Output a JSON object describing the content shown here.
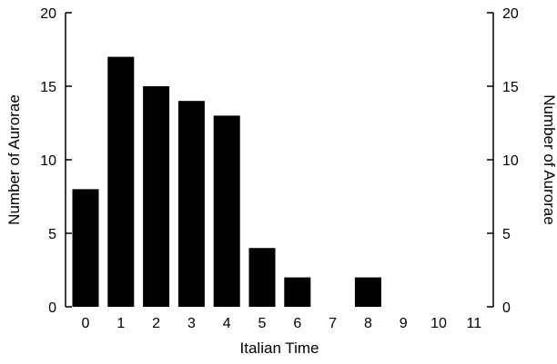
{
  "chart_data": {
    "type": "bar",
    "categories": [
      "0",
      "1",
      "2",
      "3",
      "4",
      "5",
      "6",
      "7",
      "8",
      "9",
      "10",
      "11"
    ],
    "values": [
      8,
      17,
      15,
      14,
      13,
      4,
      2,
      0,
      2,
      0,
      0,
      0
    ],
    "title": "",
    "xlabel": "Italian Time",
    "ylabel": "Number of Aurorae",
    "ylabel_right": "Number of Aurorae",
    "ylim": [
      0,
      20
    ],
    "yticks": [
      0,
      5,
      10,
      15,
      20
    ],
    "bar_color": "#000000",
    "grid": false,
    "legend": "none"
  }
}
